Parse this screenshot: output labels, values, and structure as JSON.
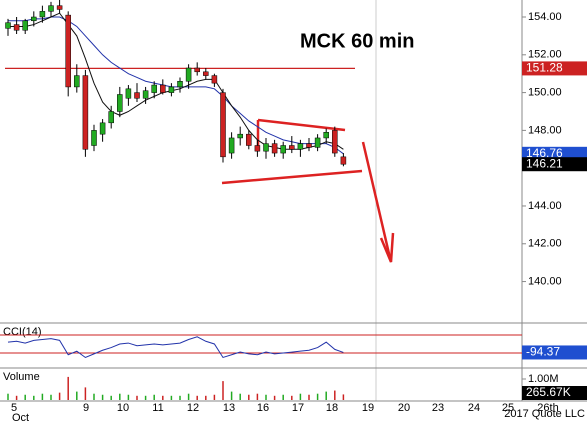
{
  "chart_data": {
    "type": "candlestick",
    "title": "MCK 60 min",
    "candles": [
      {
        "o": 153.4,
        "h": 153.9,
        "l": 153.0,
        "c": 153.7
      },
      {
        "o": 153.6,
        "h": 154.0,
        "l": 153.1,
        "c": 153.3
      },
      {
        "o": 153.3,
        "h": 153.9,
        "l": 153.1,
        "c": 153.8
      },
      {
        "o": 153.8,
        "h": 154.3,
        "l": 153.5,
        "c": 154.0
      },
      {
        "o": 154.0,
        "h": 154.6,
        "l": 153.7,
        "c": 154.3
      },
      {
        "o": 154.3,
        "h": 154.8,
        "l": 154.0,
        "c": 154.6
      },
      {
        "o": 154.6,
        "h": 154.9,
        "l": 154.2,
        "c": 154.4
      },
      {
        "o": 154.1,
        "h": 154.3,
        "l": 149.8,
        "c": 150.3
      },
      {
        "o": 150.3,
        "h": 151.5,
        "l": 150.0,
        "c": 150.9
      },
      {
        "o": 150.9,
        "h": 151.2,
        "l": 146.6,
        "c": 147.0
      },
      {
        "o": 147.2,
        "h": 148.3,
        "l": 146.9,
        "c": 148.0
      },
      {
        "o": 147.8,
        "h": 148.6,
        "l": 147.4,
        "c": 148.4
      },
      {
        "o": 148.4,
        "h": 149.3,
        "l": 148.1,
        "c": 149.0
      },
      {
        "o": 149.0,
        "h": 150.3,
        "l": 148.7,
        "c": 149.9
      },
      {
        "o": 149.7,
        "h": 150.4,
        "l": 149.3,
        "c": 150.2
      },
      {
        "o": 150.0,
        "h": 150.5,
        "l": 149.5,
        "c": 149.7
      },
      {
        "o": 149.7,
        "h": 150.3,
        "l": 149.4,
        "c": 150.1
      },
      {
        "o": 150.0,
        "h": 150.6,
        "l": 149.7,
        "c": 150.4
      },
      {
        "o": 150.4,
        "h": 150.7,
        "l": 149.9,
        "c": 150.0
      },
      {
        "o": 150.0,
        "h": 150.5,
        "l": 149.8,
        "c": 150.3
      },
      {
        "o": 150.3,
        "h": 150.8,
        "l": 150.0,
        "c": 150.6
      },
      {
        "o": 150.6,
        "h": 151.5,
        "l": 150.2,
        "c": 151.3
      },
      {
        "o": 151.3,
        "h": 151.6,
        "l": 150.9,
        "c": 151.1
      },
      {
        "o": 151.1,
        "h": 151.3,
        "l": 150.7,
        "c": 150.9
      },
      {
        "o": 150.9,
        "h": 151.0,
        "l": 150.3,
        "c": 150.5
      },
      {
        "o": 150.0,
        "h": 150.2,
        "l": 146.3,
        "c": 146.6
      },
      {
        "o": 146.8,
        "h": 147.9,
        "l": 146.5,
        "c": 147.6
      },
      {
        "o": 147.6,
        "h": 148.2,
        "l": 147.2,
        "c": 147.8
      },
      {
        "o": 147.8,
        "h": 148.0,
        "l": 147.0,
        "c": 147.2
      },
      {
        "o": 147.2,
        "h": 147.5,
        "l": 146.6,
        "c": 146.9
      },
      {
        "o": 146.9,
        "h": 147.6,
        "l": 146.5,
        "c": 147.3
      },
      {
        "o": 147.3,
        "h": 147.5,
        "l": 146.6,
        "c": 146.8
      },
      {
        "o": 146.8,
        "h": 147.4,
        "l": 146.5,
        "c": 147.2
      },
      {
        "o": 147.2,
        "h": 147.7,
        "l": 146.8,
        "c": 147.0
      },
      {
        "o": 147.0,
        "h": 147.5,
        "l": 146.6,
        "c": 147.3
      },
      {
        "o": 147.3,
        "h": 147.6,
        "l": 146.9,
        "c": 147.1
      },
      {
        "o": 147.1,
        "h": 147.8,
        "l": 146.9,
        "c": 147.6
      },
      {
        "o": 147.6,
        "h": 148.1,
        "l": 147.3,
        "c": 147.9
      },
      {
        "o": 148.0,
        "h": 148.2,
        "l": 146.6,
        "c": 146.8
      },
      {
        "o": 146.6,
        "h": 146.8,
        "l": 146.1,
        "c": 146.21
      }
    ],
    "up_color": "#22aa22",
    "down_color": "#cc2222",
    "averages": [
      {
        "color": "#2233aa",
        "values": [
          153.8,
          153.8,
          153.8,
          153.9,
          153.9,
          154.0,
          154.0,
          153.8,
          153.5,
          153.0,
          152.5,
          152.0,
          151.6,
          151.3,
          151.0,
          150.8,
          150.6,
          150.5,
          150.4,
          150.3,
          150.3,
          150.3,
          150.3,
          150.3,
          150.2,
          149.8,
          149.3,
          148.9,
          148.5,
          148.2,
          147.9,
          147.7,
          147.5,
          147.4,
          147.3,
          147.3,
          147.3,
          147.3,
          147.1,
          146.76
        ]
      },
      {
        "color": "#111111",
        "values": [
          153.5,
          153.5,
          153.5,
          153.6,
          153.8,
          154.0,
          154.2,
          153.6,
          153.0,
          151.8,
          150.5,
          149.5,
          149.0,
          148.8,
          149.0,
          149.3,
          149.6,
          149.8,
          150.0,
          150.1,
          150.2,
          150.4,
          150.6,
          150.7,
          150.7,
          150.0,
          149.3,
          148.7,
          148.0,
          147.5,
          147.2,
          147.1,
          147.0,
          147.0,
          147.0,
          147.1,
          147.2,
          147.4,
          147.3,
          147.0
        ]
      }
    ],
    "level": {
      "value": 151.28,
      "label": "151.28",
      "color": "#cc2222"
    },
    "tags": [
      {
        "value": 146.76,
        "label": "146.76",
        "color": "#1f4fd0"
      },
      {
        "value": 146.21,
        "label": "146.21",
        "color": "#000000"
      }
    ],
    "ylim": [
      137.86,
      154.9
    ],
    "yticks": [
      {
        "value": 154,
        "label": "154.00"
      },
      {
        "value": 152,
        "label": "152.00"
      },
      {
        "value": 150,
        "label": "150.00"
      },
      {
        "value": 148,
        "label": "148.00"
      },
      {
        "value": 144,
        "label": "144.00"
      },
      {
        "value": 142,
        "label": "142.00"
      },
      {
        "value": 140,
        "label": "140.00"
      }
    ],
    "cci": {
      "label": "CCI(14)",
      "color": "#2233aa",
      "ylim": [
        -256,
        211
      ],
      "ref_lines": [
        100,
        -100
      ],
      "values": [
        20,
        30,
        10,
        40,
        50,
        60,
        40,
        -120,
        -80,
        -150,
        -110,
        -70,
        -40,
        0,
        10,
        -20,
        -10,
        0,
        -10,
        0,
        10,
        50,
        80,
        30,
        0,
        -150,
        -120,
        -90,
        -110,
        -120,
        -90,
        -110,
        -100,
        -90,
        -80,
        -70,
        -40,
        20,
        -60,
        -94.37
      ],
      "tag": {
        "value": -94.37,
        "label": "-94.37",
        "color": "#1f4fd0"
      }
    },
    "volume": {
      "label": "Volume",
      "ylim": [
        0,
        1476000
      ],
      "yticks": [
        {
          "value": 1000000,
          "label": "1.00M"
        }
      ],
      "values": [
        300000,
        200000,
        250000,
        200000,
        300000,
        250000,
        350000,
        1100000,
        400000,
        600000,
        300000,
        250000,
        200000,
        300000,
        250000,
        200000,
        200000,
        250000,
        200000,
        200000,
        200000,
        300000,
        200000,
        200000,
        250000,
        900000,
        400000,
        300000,
        250000,
        300000,
        250000,
        200000,
        250000,
        200000,
        300000,
        250000,
        300000,
        400000,
        450000,
        265670
      ],
      "tag": {
        "value": 265670,
        "label": "265.67K",
        "color": "#000000"
      }
    },
    "date_ticks": [
      "5",
      "9",
      "10",
      "11",
      "12",
      "13",
      "16",
      "17",
      "18",
      "19",
      "20",
      "23",
      "24",
      "25",
      "26th"
    ],
    "month_label": "Oct",
    "credit": "2017 Quote LLC"
  }
}
